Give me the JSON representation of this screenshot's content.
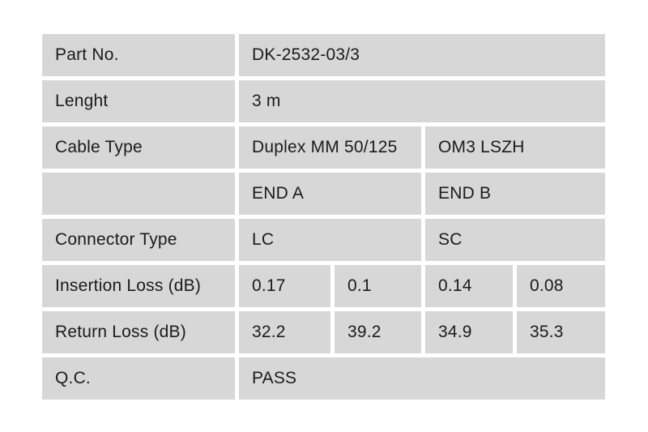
{
  "colors": {
    "cell_bg": "#d7d7d7",
    "page_bg": "#ffffff",
    "text": "#1b1b1b"
  },
  "spec_table": {
    "rows": [
      {
        "label": "Part No.",
        "cells": [
          {
            "text": "DK-2532-03/3",
            "span": 4
          }
        ]
      },
      {
        "label": "Lenght",
        "cells": [
          {
            "text": "3 m",
            "span": 4
          }
        ]
      },
      {
        "label": "Cable Type",
        "cells": [
          {
            "text": "Duplex MM 50/125",
            "span": 2
          },
          {
            "text": "OM3 LSZH",
            "span": 2
          }
        ]
      },
      {
        "label": "",
        "cells": [
          {
            "text": "END A",
            "span": 2
          },
          {
            "text": "END B",
            "span": 2
          }
        ]
      },
      {
        "label": "Connector Type",
        "cells": [
          {
            "text": "LC",
            "span": 2
          },
          {
            "text": "SC",
            "span": 2
          }
        ]
      },
      {
        "label": "Insertion Loss (dB)",
        "cells": [
          {
            "text": "0.17",
            "span": 1
          },
          {
            "text": "0.1",
            "span": 1
          },
          {
            "text": "0.14",
            "span": 1
          },
          {
            "text": "0.08",
            "span": 1
          }
        ]
      },
      {
        "label": "Return Loss (dB)",
        "cells": [
          {
            "text": "32.2",
            "span": 1
          },
          {
            "text": "39.2",
            "span": 1
          },
          {
            "text": "34.9",
            "span": 1
          },
          {
            "text": "35.3",
            "span": 1
          }
        ]
      },
      {
        "label": "Q.C.",
        "cells": [
          {
            "text": "PASS",
            "span": 4
          }
        ]
      }
    ]
  }
}
